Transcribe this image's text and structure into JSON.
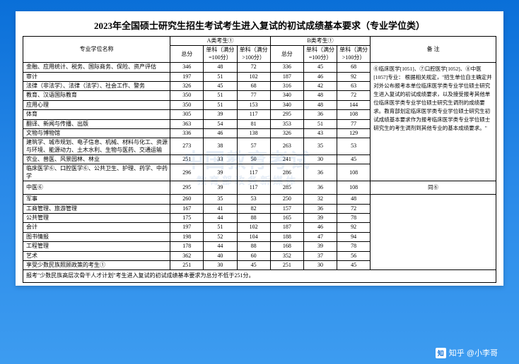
{
  "title": "2023年全国硕士研究生招生考试考生进入复试的初试成绩基本要求（专业学位类）",
  "header": {
    "major": "专业学位名称",
    "groupA": "A类考生①",
    "groupB": "B类考生①",
    "remark": "备  注",
    "total": "总分",
    "s100": "单科（满分=100分）",
    "s100p": "单科（满分>100分）"
  },
  "rows": [
    {
      "name": "金融、应用统计、税务、国际商务、保险、资产评估",
      "a": [
        346,
        48,
        72
      ],
      "b": [
        336,
        45,
        68
      ]
    },
    {
      "name": "审计",
      "a": [
        197,
        51,
        102
      ],
      "b": [
        187,
        46,
        92
      ]
    },
    {
      "name": "法律（非法学）、法律（法学）、社会工作、警务",
      "a": [
        326,
        45,
        68
      ],
      "b": [
        316,
        42,
        63
      ]
    },
    {
      "name": "教育、汉语国际教育",
      "a": [
        350,
        51,
        77
      ],
      "b": [
        340,
        48,
        72
      ]
    },
    {
      "name": "应用心理",
      "a": [
        350,
        51,
        153
      ],
      "b": [
        340,
        48,
        144
      ]
    },
    {
      "name": "体育",
      "a": [
        305,
        39,
        117
      ],
      "b": [
        295,
        36,
        108
      ]
    },
    {
      "name": "翻译、新闻与传播、出版",
      "a": [
        363,
        54,
        81
      ],
      "b": [
        353,
        51,
        77
      ]
    },
    {
      "name": "文物与博物馆",
      "a": [
        336,
        46,
        138
      ],
      "b": [
        326,
        43,
        129
      ]
    },
    {
      "name": "建筑学、城市规划、电子信息、机械、材料与化工、资源与环境、能源动力、土木水利、生物与医药、交通运输",
      "a": [
        273,
        38,
        57
      ],
      "b": [
        263,
        35,
        53
      ]
    },
    {
      "name": "农业、兽医、风景园林、林业",
      "a": [
        251,
        33,
        50
      ],
      "b": [
        241,
        30,
        45
      ]
    },
    {
      "name": "临床医学⑥、口腔医学⑥、公共卫生、护理、药学、中药学",
      "a": [
        296,
        39,
        117
      ],
      "b": [
        286,
        36,
        108
      ]
    },
    {
      "name": "中医⑥",
      "a": [
        295,
        39,
        117
      ],
      "b": [
        285,
        36,
        108
      ]
    },
    {
      "name": "军事",
      "a": [
        260,
        35,
        53
      ],
      "b": [
        250,
        32,
        48
      ]
    },
    {
      "name": "工商管理、旅游管理",
      "a": [
        167,
        41,
        82
      ],
      "b": [
        157,
        36,
        72
      ]
    },
    {
      "name": "公共管理",
      "a": [
        175,
        44,
        88
      ],
      "b": [
        165,
        39,
        78
      ]
    },
    {
      "name": "会计",
      "a": [
        197,
        51,
        102
      ],
      "b": [
        187,
        46,
        92
      ]
    },
    {
      "name": "图书情报",
      "a": [
        198,
        52,
        104
      ],
      "b": [
        188,
        47,
        94
      ]
    },
    {
      "name": "工程管理",
      "a": [
        178,
        44,
        88
      ],
      "b": [
        168,
        39,
        78
      ]
    },
    {
      "name": "艺术",
      "a": [
        362,
        40,
        60
      ],
      "b": [
        352,
        37,
        56
      ]
    },
    {
      "name": "享受少数民族照顾政策的考生①",
      "a": [
        251,
        30,
        45
      ],
      "b": [
        251,
        30,
        45
      ]
    }
  ],
  "remark_text": "⑥临床医学[1051]、⑦口腔医学[1052]、⑧中医[1057]专业：\n根据相关规定，\"招生单位自主确定并对外公布报考本单位临床医学类专业学位硕士研究生进入复试的初试成绩要求，以及接受报考其他单位临床医学类专业学位硕士研究生调剂的成绩要求。教育部划定临床医学类专业学位硕士研究生初试成绩基本要求作为报考临床医学类专业学位硕士研究生的考生调剂到其他专业的基本成绩要求。\"",
  "remark12": "同⑥",
  "footnote": "报考\"少数民族高层次骨干人才计划\"考生进入复试的初试成绩基本要求为总分不低于251分。",
  "watermark": "中国教育考试",
  "watermark_sub": "教育部政务新媒体",
  "zhihu": "知乎 @小李哥"
}
